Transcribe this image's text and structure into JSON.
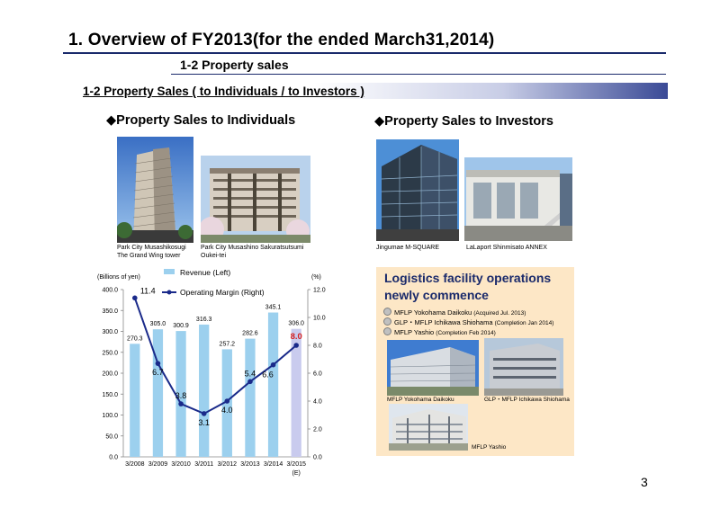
{
  "header": {
    "title": "1. Overview of FY2013(for the ended March31,2014)",
    "subtitle": "1-2  Property sales"
  },
  "section": {
    "title": "1-2 Property Sales ( to Individuals / to Investors )"
  },
  "individuals": {
    "heading": "◆Property Sales to Individuals",
    "photos": [
      {
        "caption_line1": "Park City Musashikosugi",
        "caption_line2": "The Grand Wing tower"
      },
      {
        "caption_line1": "Park City Musashino Sakuratsutsumi",
        "caption_line2": "Oukei-tei"
      }
    ]
  },
  "investors": {
    "heading": "◆Property Sales to Investors",
    "photos": [
      {
        "caption": "Jingumae M-SQUARE"
      },
      {
        "caption": "LaLaport Shinmisato ANNEX"
      }
    ]
  },
  "logistics": {
    "title_line1": "Logistics facility operations",
    "title_line2": "newly commence",
    "items": [
      {
        "name": "MFLP Yokohama Daikoku",
        "note": "(Acquired Jul. 2013)"
      },
      {
        "name": "GLP・MFLP Ichikawa Shiohama",
        "note": "(Completion Jan 2014)"
      },
      {
        "name": "MFLP Yashio",
        "note": "(Completion Feb 2014)"
      }
    ],
    "photo_captions": [
      "MFLP Yokohama Daikoku",
      "GLP・MFLP Ichikawa Shiohama",
      "MFLP Yashio"
    ]
  },
  "chart_data": {
    "type": "bar",
    "categories": [
      "3/2008",
      "3/2009",
      "3/2010",
      "3/2011",
      "3/2012",
      "3/2013",
      "3/2014",
      "3/2015"
    ],
    "category_note": "(E)",
    "y_left_label": "(Billions of yen)",
    "y_right_label": "(%)",
    "y_left_range": [
      0,
      400
    ],
    "y_left_ticks": [
      "0.0",
      "50.0",
      "100.0",
      "150.0",
      "200.0",
      "250.0",
      "300.0",
      "350.0",
      "400.0"
    ],
    "y_right_range": [
      0,
      12
    ],
    "y_right_ticks": [
      "0.0",
      "2.0",
      "4.0",
      "6.0",
      "8.0",
      "10.0",
      "12.0"
    ],
    "legend_placement": "top-left",
    "series": [
      {
        "name": "Revenue (Left)",
        "type": "bar",
        "axis": "left",
        "values": [
          270.3,
          305.0,
          300.9,
          316.3,
          257.2,
          282.6,
          345.1,
          306.0
        ],
        "labels": [
          "270.3",
          "305.0",
          "300.9",
          "316.3",
          "257.2",
          "282.6",
          "345.1",
          "306.0"
        ],
        "color": "#9cd0ee",
        "forecast_color": "#c9cbee"
      },
      {
        "name": "Operating Margin (Right)",
        "type": "line",
        "axis": "right",
        "values": [
          11.4,
          6.7,
          3.8,
          3.1,
          4.0,
          5.4,
          6.6,
          8.0
        ],
        "labels": [
          "11.4",
          "6.7",
          "3.8",
          "3.1",
          "4.0",
          "5.4",
          "6.6",
          "8.0"
        ],
        "color": "#1a2a8a",
        "highlight_color": "#d42020"
      }
    ],
    "grid": false
  },
  "page": {
    "number": "3"
  }
}
